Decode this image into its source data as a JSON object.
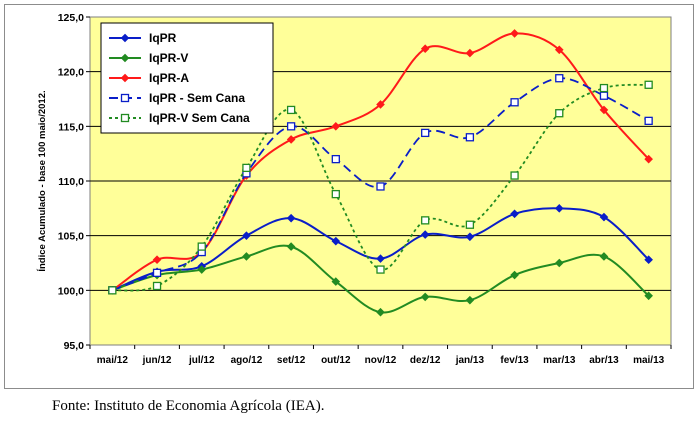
{
  "source_note": "Fonte: Instituto de Economia Agrícola (IEA).",
  "chart_data": {
    "type": "line",
    "title": "",
    "xlabel": "",
    "ylabel": "Índice Acumulado - base 100 maio/2012.",
    "ylim": [
      95,
      125
    ],
    "yticks": [
      "95,0",
      "100,0",
      "105,0",
      "110,0",
      "115,0",
      "120,0",
      "125,0"
    ],
    "categories": [
      "mai/12",
      "jun/12",
      "jul/12",
      "ago/12",
      "set/12",
      "out/12",
      "nov/12",
      "dez/12",
      "jan/13",
      "fev/13",
      "mar/13",
      "abr/13",
      "mai/13"
    ],
    "grid": "horizontal",
    "legend_position": "top-left",
    "plot_background": "#ffff99",
    "series": [
      {
        "name": "IqPR",
        "color": "#0a1ec8",
        "style": "solid",
        "marker": "diamond-filled",
        "values": [
          100.0,
          101.7,
          102.2,
          105.0,
          106.6,
          104.5,
          102.9,
          105.1,
          104.9,
          107.0,
          107.5,
          106.7,
          102.8
        ]
      },
      {
        "name": "IqPR-V",
        "color": "#228b22",
        "style": "solid",
        "marker": "diamond-filled",
        "values": [
          100.0,
          101.4,
          101.9,
          103.1,
          104.0,
          100.8,
          98.0,
          99.4,
          99.1,
          101.4,
          102.5,
          103.1,
          99.5
        ]
      },
      {
        "name": "IqPR-A",
        "color": "#ff1a1a",
        "style": "solid",
        "marker": "diamond-filled",
        "values": [
          100.0,
          102.8,
          103.5,
          110.5,
          113.8,
          115.0,
          117.0,
          122.1,
          121.7,
          123.5,
          122.0,
          116.5,
          112.0
        ]
      },
      {
        "name": "IqPR - Sem Cana",
        "color": "#0a1ec8",
        "style": "dashed",
        "marker": "square-open",
        "values": [
          100.0,
          101.6,
          103.5,
          110.7,
          115.0,
          112.0,
          109.5,
          114.4,
          114.0,
          117.2,
          119.4,
          117.8,
          115.5
        ]
      },
      {
        "name": "IqPR-V Sem Cana",
        "color": "#228b22",
        "style": "dotted",
        "marker": "square-open",
        "values": [
          100.0,
          100.4,
          104.0,
          111.2,
          116.5,
          108.8,
          101.9,
          106.4,
          106.0,
          110.5,
          116.2,
          118.5,
          118.8
        ]
      }
    ]
  }
}
